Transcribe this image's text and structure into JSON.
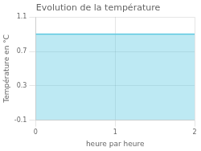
{
  "chart_data": {
    "type": "area",
    "title": "Evolution de la température",
    "xlabel": "heure par heure",
    "ylabel": "Température en °C",
    "x": [
      0,
      2
    ],
    "values": [
      0.9,
      0.9
    ],
    "color": "#5bc8e0",
    "xlim": [
      0,
      2
    ],
    "xticks": [
      0,
      1,
      2
    ],
    "ylim": [
      -0.1,
      1.1
    ],
    "yticks": [
      -0.1,
      0.3,
      0.7,
      1.1
    ],
    "grid": true
  }
}
